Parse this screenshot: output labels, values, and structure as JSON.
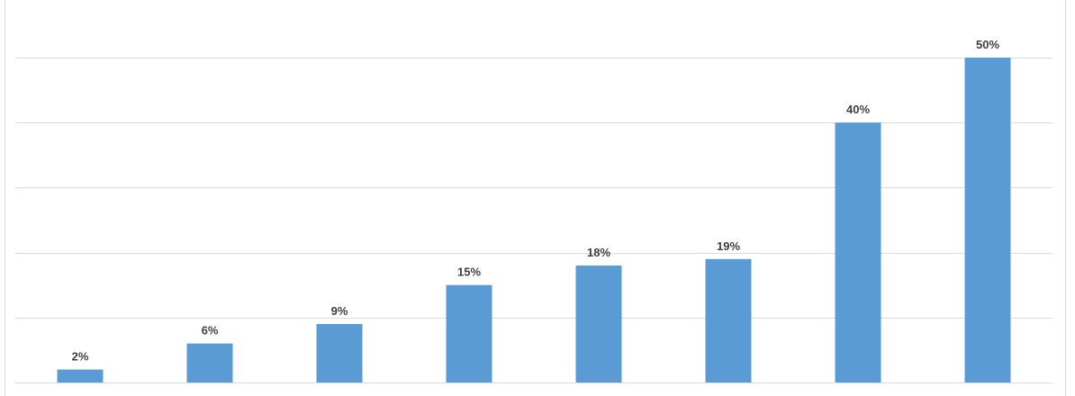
{
  "chart_data": {
    "type": "bar",
    "categories": [
      null,
      null,
      null,
      null,
      null,
      null,
      null,
      null
    ],
    "values": [
      2,
      6,
      9,
      15,
      18,
      19,
      40,
      50
    ],
    "value_labels": [
      "2%",
      "6%",
      "9%",
      "15%",
      "18%",
      "19%",
      "40%",
      "50%"
    ],
    "color": "#5b9bd5",
    "ylim": [
      0,
      50
    ],
    "yticks": [
      0,
      10,
      20,
      30,
      40,
      50
    ],
    "grid": true
  }
}
